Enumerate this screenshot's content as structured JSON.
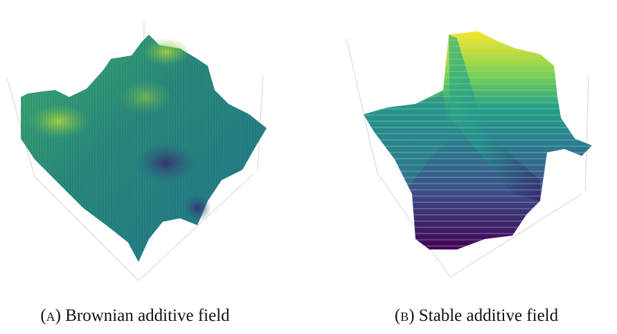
{
  "figures": [
    {
      "label": "(a)",
      "caption": "Brownian additive field"
    },
    {
      "label": "(b)",
      "caption": "Stable additive field"
    }
  ]
}
